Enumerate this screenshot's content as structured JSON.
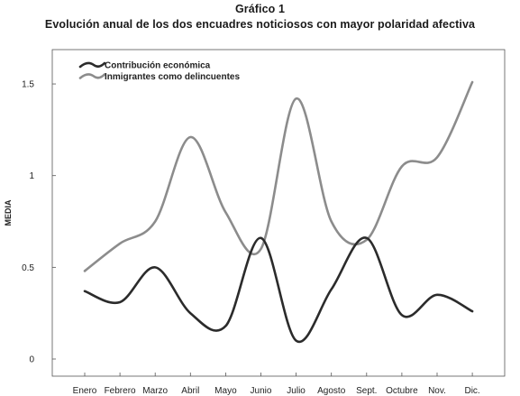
{
  "figure": {
    "label": "Gráfico 1",
    "caption": "Evolución anual de los dos encuadres noticiosos con mayor polaridad afectiva"
  },
  "chart_data": {
    "type": "line",
    "title": "Evolución anual de los dos encuadres noticiosos con mayor polaridad afectiva",
    "xlabel": "",
    "ylabel": "MEDIA",
    "ylim": [
      0,
      1.6
    ],
    "yticks": [
      0,
      0.5,
      1,
      1.5
    ],
    "ytick_labels": [
      "0",
      "0.5",
      "1",
      "1.5"
    ],
    "grid": false,
    "legend_position": "top-left",
    "categories": [
      "Enero",
      "Febrero",
      "Marzo",
      "Abril",
      "Mayo",
      "Junio",
      "Julio",
      "Agosto",
      "Sept.",
      "Octubre",
      "Nov.",
      "Dic."
    ],
    "series": [
      {
        "name": "Contribución económica",
        "color": "#2b2b2b",
        "values": [
          0.37,
          0.31,
          0.5,
          0.25,
          0.18,
          0.66,
          0.1,
          0.38,
          0.66,
          0.24,
          0.35,
          0.26
        ]
      },
      {
        "name": "Inmigrantes como delincuentes",
        "color": "#8c8c8c",
        "values": [
          0.48,
          0.63,
          0.75,
          1.21,
          0.8,
          0.6,
          1.42,
          0.75,
          0.65,
          1.05,
          1.1,
          1.51
        ]
      }
    ]
  }
}
